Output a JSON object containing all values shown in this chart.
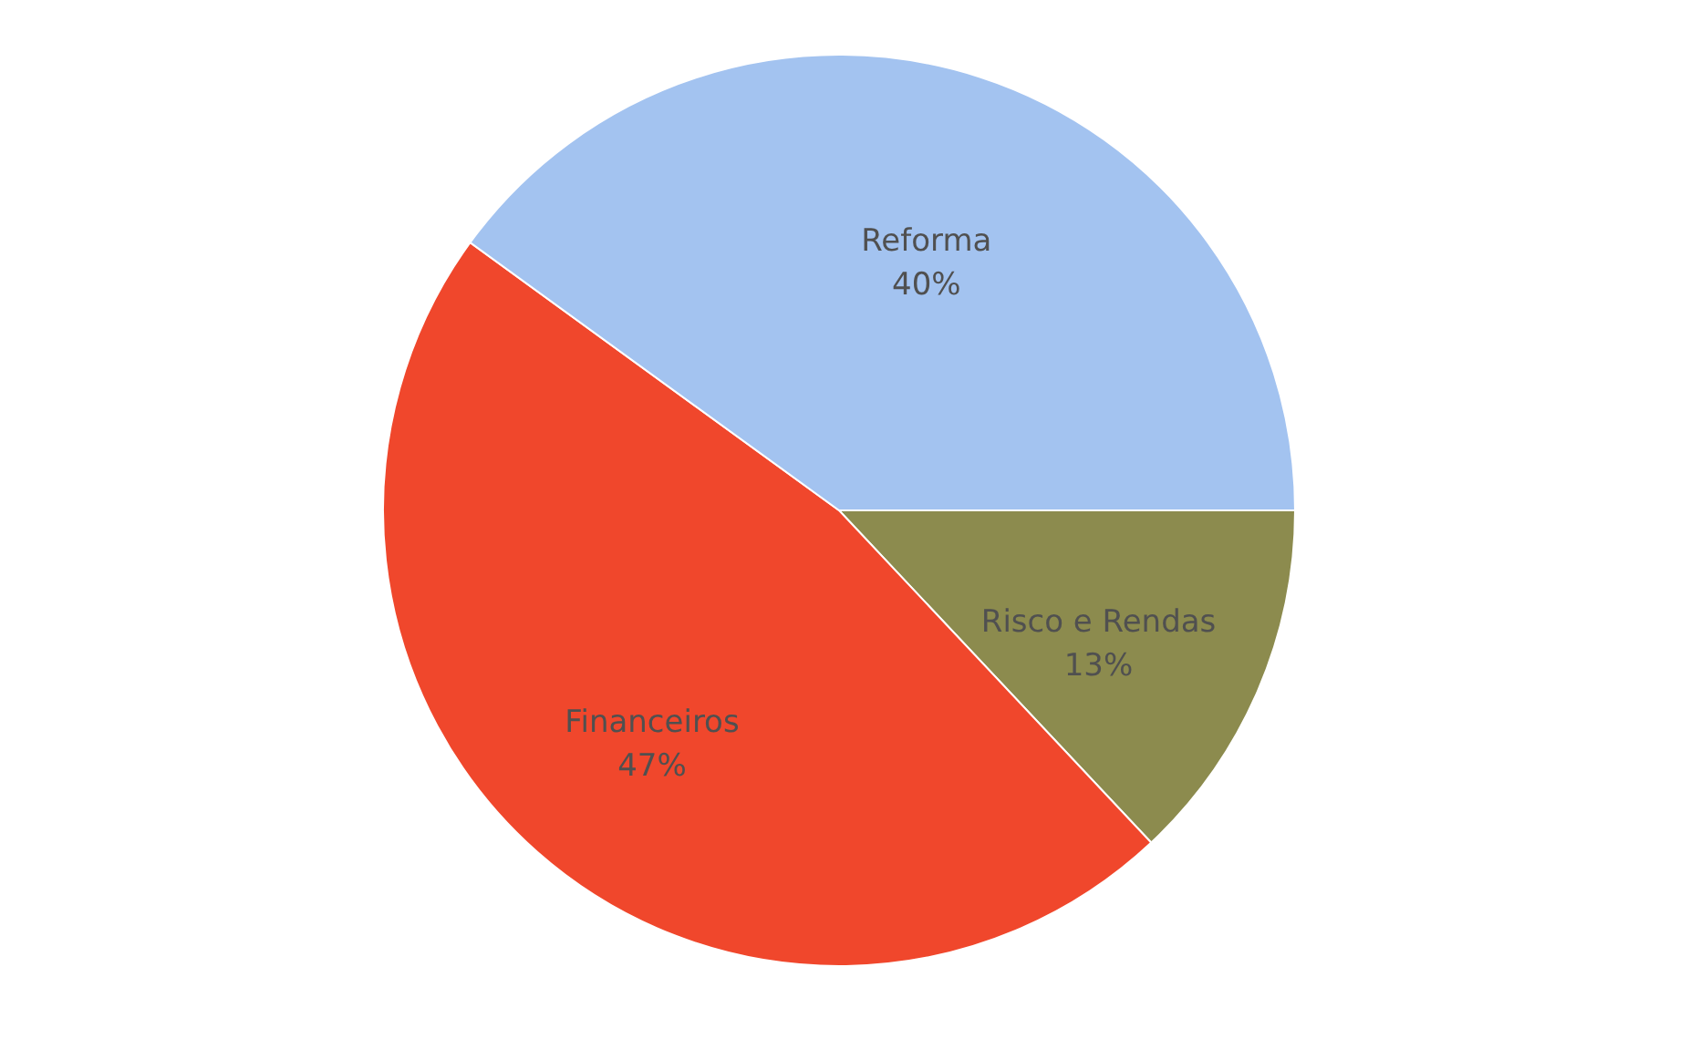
{
  "chart_data": {
    "type": "pie",
    "categories": [
      "Risco e Rendas",
      "Financeiros",
      "Reforma"
    ],
    "values": [
      13,
      47,
      40
    ],
    "colors": [
      "#8c8b4e",
      "#f0472c",
      "#a3c3f0"
    ],
    "value_labels": [
      "13%",
      "47%",
      "40%"
    ],
    "legend": false
  }
}
